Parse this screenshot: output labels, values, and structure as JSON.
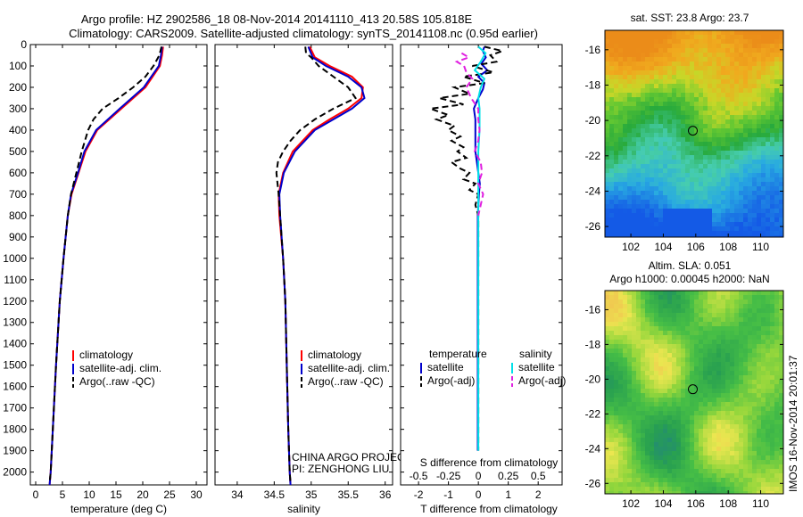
{
  "header": {
    "line1": "Argo profile: HZ 2902586_18 08-Nov-2014 20141110_413 20.58S 105.818E",
    "line2": "Climatology: CARS2009. Satellite-adjusted climatology: synTS_20141108.nc (0.95d earlier)"
  },
  "side_stamp": "IMOS 16-Nov-2014 20:01:37",
  "colors": {
    "climatology": "#ff0000",
    "satellite": "#0000cc",
    "argo": "#000000",
    "satellite_salinity": "#00e0e8",
    "argo_salinity": "#e020e0"
  },
  "chart_data": [
    {
      "type": "line",
      "panel": "temperature",
      "xlabel": "temperature (deg C)",
      "ylabel": "",
      "xlim": [
        -1,
        32
      ],
      "ylim": [
        2060,
        0
      ],
      "xticks": [
        0,
        5,
        10,
        15,
        20,
        25,
        30
      ],
      "yticks": [
        0,
        100,
        200,
        300,
        400,
        500,
        600,
        700,
        800,
        900,
        1000,
        1100,
        1200,
        1300,
        1400,
        1500,
        1600,
        1700,
        1800,
        1900,
        2000
      ],
      "legend": {
        "position": "lower-center",
        "entries": [
          "climatology",
          "satellite-adj. clim.",
          "Argo(..raw -QC)"
        ]
      },
      "series": [
        {
          "name": "climatology",
          "color": "#ff0000",
          "dash": "solid",
          "depth": [
            10,
            50,
            100,
            200,
            300,
            400,
            500,
            600,
            700,
            800,
            1000,
            1200,
            1500,
            1800,
            2000,
            2060
          ],
          "values": [
            23.8,
            23.6,
            23.2,
            20.5,
            16.0,
            11.5,
            9.3,
            8.0,
            6.7,
            6.0,
            5.2,
            4.5,
            3.8,
            3.2,
            2.8,
            2.6
          ]
        },
        {
          "name": "satellite-adj. clim.",
          "color": "#0000cc",
          "dash": "solid",
          "depth": [
            10,
            50,
            100,
            200,
            300,
            400,
            500,
            600,
            700,
            800,
            1000,
            1200,
            1500,
            1800,
            2000,
            2060
          ],
          "values": [
            23.6,
            23.4,
            23.0,
            20.2,
            15.7,
            11.3,
            9.1,
            7.9,
            6.6,
            6.0,
            5.2,
            4.5,
            3.8,
            3.2,
            2.8,
            2.6
          ]
        },
        {
          "name": "Argo(..raw -QC)",
          "color": "#000000",
          "dash": "dashed",
          "depth": [
            10,
            50,
            100,
            150,
            200,
            250,
            300,
            350,
            400,
            500,
            600,
            700,
            800,
            1000,
            1200,
            1500,
            1800,
            2000,
            2050
          ],
          "values": [
            23.5,
            23.1,
            22.0,
            20.5,
            18.2,
            15.5,
            12.5,
            10.8,
            9.8,
            8.6,
            7.6,
            6.6,
            6.0,
            5.2,
            4.5,
            3.8,
            3.2,
            2.8,
            2.6
          ]
        }
      ]
    },
    {
      "type": "line",
      "panel": "salinity",
      "xlabel": "salinity",
      "ylabel": "",
      "xlim": [
        33.7,
        36.1
      ],
      "ylim": [
        2060,
        0
      ],
      "xticks": [
        34,
        34.5,
        35,
        35.5,
        36
      ],
      "yticks": [
        0,
        100,
        200,
        300,
        400,
        500,
        600,
        700,
        800,
        900,
        1000,
        1100,
        1200,
        1300,
        1400,
        1500,
        1600,
        1700,
        1800,
        1900,
        2000
      ],
      "legend": {
        "position": "lower-center",
        "entries": [
          "climatology",
          "satellite-adj. clim.",
          "Argo(..raw -QC)"
        ]
      },
      "annotations": [
        "CHINA ARGO PROJECT",
        "PI: ZENGHONG LIU"
      ],
      "series": [
        {
          "name": "climatology",
          "color": "#ff0000",
          "dash": "solid",
          "depth": [
            10,
            60,
            100,
            150,
            200,
            250,
            300,
            350,
            400,
            500,
            600,
            700,
            800,
            1000,
            1200,
            1500,
            1800,
            2000,
            2060
          ],
          "values": [
            34.98,
            35.05,
            35.25,
            35.55,
            35.7,
            35.68,
            35.5,
            35.25,
            35.02,
            34.75,
            34.62,
            34.56,
            34.57,
            34.62,
            34.65,
            34.67,
            34.69,
            34.71,
            34.72
          ]
        },
        {
          "name": "satellite-adj. clim.",
          "color": "#0000cc",
          "dash": "solid",
          "depth": [
            10,
            60,
            100,
            150,
            200,
            250,
            300,
            350,
            400,
            500,
            600,
            700,
            800,
            1000,
            1200,
            1500,
            1800,
            2000,
            2060
          ],
          "values": [
            34.96,
            35.02,
            35.2,
            35.5,
            35.68,
            35.72,
            35.55,
            35.3,
            35.05,
            34.78,
            34.63,
            34.57,
            34.58,
            34.62,
            34.65,
            34.67,
            34.69,
            34.71,
            34.72
          ]
        },
        {
          "name": "Argo(..raw -QC)",
          "color": "#000000",
          "dash": "dashed",
          "depth": [
            10,
            40,
            60,
            100,
            150,
            200,
            250,
            300,
            350,
            400,
            450,
            500,
            550,
            600,
            700,
            800,
            900,
            1000,
            1200,
            1500,
            1800,
            2000,
            2050
          ],
          "values": [
            34.92,
            34.93,
            35.0,
            35.1,
            35.3,
            35.5,
            35.6,
            35.3,
            35.05,
            34.85,
            34.72,
            34.62,
            34.55,
            34.53,
            34.56,
            34.58,
            34.6,
            34.62,
            34.65,
            34.67,
            34.69,
            34.71,
            34.72
          ]
        }
      ]
    },
    {
      "type": "line",
      "panel": "difference",
      "xlabel": "T difference from climatology",
      "xlabel_top": "S difference from climatology",
      "xlim_T": [
        -2.6,
        2.8
      ],
      "xticks_T": [
        -2,
        -1,
        0,
        1,
        2
      ],
      "xlim_S": [
        -0.65,
        0.7
      ],
      "xticks_S": [
        -0.5,
        -0.25,
        0,
        0.25,
        0.5
      ],
      "xticklabels_S": [
        "-0.5",
        "-0.25",
        "0",
        "0.25",
        "0.5"
      ],
      "ylim": [
        2060,
        0
      ],
      "legend": {
        "position": "lower-center",
        "temperature_title": "temperature",
        "salinity_title": "salinity",
        "entries": [
          "satellite",
          "Argo(-adj)",
          "satellite",
          "Argo(-adj)"
        ]
      },
      "series": [
        {
          "name": "temperature satellite",
          "color": "#0000cc",
          "dash": "solid",
          "units": "T",
          "depth": [
            10,
            30,
            60,
            90,
            120,
            150,
            180,
            210,
            250,
            300,
            350,
            400,
            450,
            500,
            550,
            600,
            650,
            700,
            800,
            1000,
            1200,
            1500,
            1800,
            1900
          ],
          "values": [
            0.2,
            0.15,
            0.25,
            0.1,
            0.3,
            0.0,
            0.2,
            0.15,
            0.0,
            -0.15,
            -0.1,
            -0.1,
            -0.1,
            -0.1,
            -0.05,
            0.0,
            0.05,
            0.02,
            -0.02,
            -0.02,
            -0.02,
            -0.02,
            -0.02,
            -0.02
          ]
        },
        {
          "name": "temperature Argo(-adj)",
          "color": "#000000",
          "dash": "dashed",
          "units": "T",
          "depth": [
            10,
            30,
            50,
            80,
            100,
            130,
            150,
            180,
            200,
            230,
            250,
            280,
            300,
            330,
            350,
            380,
            400,
            430,
            450,
            480,
            500,
            530,
            550,
            580,
            600,
            630,
            650,
            680,
            700,
            750,
            800,
            1000,
            1500,
            1900
          ],
          "values": [
            0.2,
            0.8,
            0.4,
            0.6,
            -0.2,
            0.5,
            -0.5,
            0.2,
            -0.8,
            -0.3,
            -1.3,
            -0.5,
            -1.6,
            -1.0,
            -1.4,
            -0.8,
            -1.0,
            -0.6,
            -0.9,
            -0.5,
            -0.7,
            -0.4,
            -0.9,
            -0.6,
            -0.3,
            -0.5,
            -0.1,
            -0.3,
            0.0,
            -0.1,
            0.0,
            0.0,
            0.0,
            0.0
          ]
        },
        {
          "name": "salinity satellite",
          "color": "#00e0e8",
          "dash": "solid",
          "units": "S",
          "depth": [
            10,
            40,
            80,
            120,
            160,
            200,
            250,
            300,
            400,
            500,
            600,
            700,
            800,
            1000,
            1500,
            1900
          ],
          "values": [
            0.0,
            0.06,
            0.02,
            -0.03,
            0.05,
            0.02,
            0.0,
            0.01,
            0.01,
            0.0,
            0.0,
            0.0,
            0.0,
            0.0,
            0.0,
            0.0
          ]
        },
        {
          "name": "salinity Argo(-adj)",
          "color": "#e020e0",
          "dash": "dashed",
          "units": "S",
          "depth": [
            40,
            60,
            80,
            100,
            130,
            160,
            200,
            250,
            300,
            350,
            400,
            450,
            500,
            550,
            600,
            650,
            700,
            750,
            800
          ],
          "values": [
            -0.14,
            -0.08,
            -0.18,
            -0.12,
            -0.1,
            -0.05,
            -0.1,
            -0.06,
            0.0,
            0.0,
            0.01,
            0.0,
            -0.03,
            0.02,
            0.03,
            0.0,
            0.04,
            0.02,
            0.0
          ]
        }
      ]
    },
    {
      "type": "heatmap",
      "panel": "sst_map",
      "title": "sat. SST: 23.8  Argo: 23.7",
      "xlim": [
        100.4,
        111.4
      ],
      "ylim": [
        -26.6,
        -14.9
      ],
      "xticks": [
        102,
        104,
        106,
        108,
        110
      ],
      "yticks": [
        -16,
        -18,
        -20,
        -22,
        -24,
        -26
      ],
      "marker": {
        "lon": 105.818,
        "lat": -20.58
      }
    },
    {
      "type": "heatmap",
      "panel": "sla_map",
      "title": "Altim. SLA: 0.051",
      "subtitle": "Argo h1000: 0.00045  h2000: NaN",
      "xlim": [
        100.4,
        111.4
      ],
      "ylim": [
        -26.6,
        -14.9
      ],
      "xticks": [
        102,
        104,
        106,
        108,
        110
      ],
      "yticks": [
        -16,
        -18,
        -20,
        -22,
        -24,
        -26
      ],
      "marker": {
        "lon": 105.818,
        "lat": -20.58
      }
    }
  ]
}
